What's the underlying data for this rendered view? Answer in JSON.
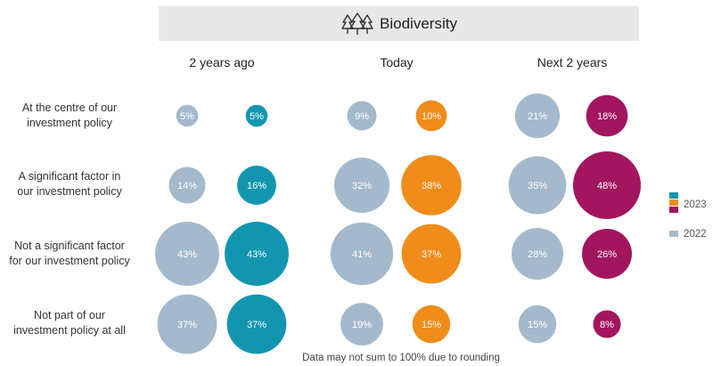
{
  "chart_data": {
    "type": "bubble",
    "title": "Biodiversity",
    "categories": [
      "2 years ago",
      "Today",
      "Next 2 years"
    ],
    "rows": [
      "At the centre of our investment policy",
      "A significant factor in our investment policy",
      "Not a significant factor for our investment policy",
      "Not part of our investment policy at all"
    ],
    "row_labels": [
      [
        "At the centre of our",
        "investment policy"
      ],
      [
        "A significant factor in",
        "our investment policy"
      ],
      [
        "Not a significant factor",
        "for our investment policy"
      ],
      [
        "Not part of our",
        "investment policy at all"
      ]
    ],
    "series": [
      {
        "name": "2022",
        "values": [
          [
            5,
            14,
            43,
            37
          ],
          [
            9,
            32,
            41,
            19
          ],
          [
            21,
            35,
            28,
            15
          ]
        ]
      },
      {
        "name": "2023",
        "values": [
          [
            5,
            16,
            43,
            37
          ],
          [
            10,
            38,
            37,
            15
          ],
          [
            18,
            48,
            26,
            8
          ]
        ]
      }
    ],
    "value_suffix": "%",
    "legend": [
      "2023",
      "2022"
    ],
    "footnote": "Data may not sum to 100% due to rounding",
    "colors": {
      "series_2022": "#a4b9cc",
      "series_2023_by_column": [
        "#1296b0",
        "#f08c1a",
        "#a3155f"
      ],
      "title_bar_bg": "#e8e8e8"
    }
  }
}
